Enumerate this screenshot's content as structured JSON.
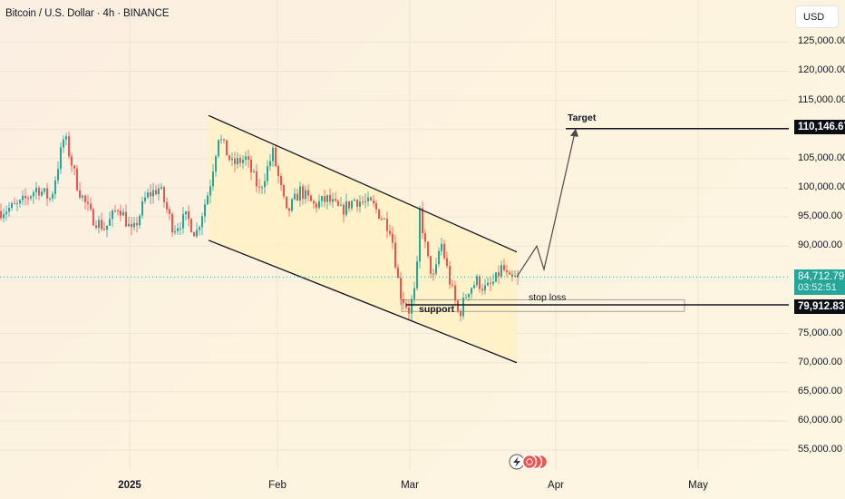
{
  "header": {
    "title": "Bitcoin / U.S. Dollar · 4h · BINANCE"
  },
  "currency_button": {
    "label": "USD"
  },
  "price_axis": {
    "ticks": [
      "125,000.00",
      "120,000.00",
      "115,000.00",
      "110,000.00",
      "105,000.00",
      "100,000.00",
      "95,000.00",
      "90,000.00",
      "75,000.00",
      "70,000.00",
      "65,000.00",
      "60,000.00",
      "55,000.00"
    ],
    "tick_values": [
      125000,
      120000,
      115000,
      110000,
      105000,
      100000,
      95000,
      90000,
      75000,
      70000,
      65000,
      60000,
      55000
    ]
  },
  "time_axis": {
    "labels": [
      "2025",
      "Feb",
      "Mar",
      "Apr",
      "May"
    ]
  },
  "price_tags": {
    "target": "110,146.67",
    "current": "84,712.79",
    "countdown": "03:52:51",
    "stop": "79,912.83"
  },
  "annotations": {
    "target": "Target",
    "stop_loss": "stop loss",
    "support": "support"
  },
  "colors": {
    "up": "#26a69a",
    "down": "#ef5350",
    "channel_fill": "#fff1c4",
    "current_line": "#26a69a",
    "tag_dark": "#0b0e14"
  },
  "icons": [
    "flash-icon",
    "event-icons"
  ],
  "chart_data": {
    "type": "candlestick",
    "symbol": "Bitcoin / U.S. Dollar",
    "interval": "4h",
    "exchange": "BINANCE",
    "y_range": [
      52000,
      130000
    ],
    "anchors": [
      [
        0,
        96000
      ],
      [
        20,
        97000
      ],
      [
        40,
        100000
      ],
      [
        55,
        98000
      ],
      [
        70,
        109000
      ],
      [
        85,
        100000
      ],
      [
        100,
        95000
      ],
      [
        115,
        93000
      ],
      [
        130,
        97000
      ],
      [
        145,
        92000
      ],
      [
        160,
        98500
      ],
      [
        175,
        100000
      ],
      [
        190,
        93000
      ],
      [
        205,
        95000
      ],
      [
        215,
        92000
      ],
      [
        230,
        100000
      ],
      [
        240,
        109000
      ],
      [
        255,
        104000
      ],
      [
        270,
        105000
      ],
      [
        285,
        99500
      ],
      [
        300,
        106000
      ],
      [
        315,
        95500
      ],
      [
        330,
        99500
      ],
      [
        345,
        97000
      ],
      [
        360,
        98000
      ],
      [
        375,
        96000
      ],
      [
        390,
        98000
      ],
      [
        410,
        97000
      ],
      [
        430,
        93000
      ],
      [
        440,
        82000
      ],
      [
        450,
        79000
      ],
      [
        458,
        83000
      ],
      [
        462,
        96000
      ],
      [
        470,
        88000
      ],
      [
        478,
        84000
      ],
      [
        485,
        91000
      ],
      [
        495,
        84000
      ],
      [
        505,
        78000
      ],
      [
        515,
        82500
      ],
      [
        525,
        84000
      ],
      [
        535,
        82500
      ],
      [
        545,
        84000
      ],
      [
        553,
        86500
      ],
      [
        560,
        84000
      ],
      [
        572,
        84712.79
      ]
    ],
    "channel": {
      "upper": [
        [
          230,
          112400
        ],
        [
          570,
          89000
        ]
      ],
      "lower": [
        [
          230,
          91000
        ],
        [
          570,
          70000
        ]
      ]
    },
    "projection": [
      [
        570,
        84712.79
      ],
      [
        592,
        90000
      ],
      [
        600,
        86000
      ],
      [
        635,
        110146.67
      ]
    ],
    "levels": {
      "target": 110146.67,
      "current": 84712.79,
      "stop_loss": 79912.83
    }
  }
}
